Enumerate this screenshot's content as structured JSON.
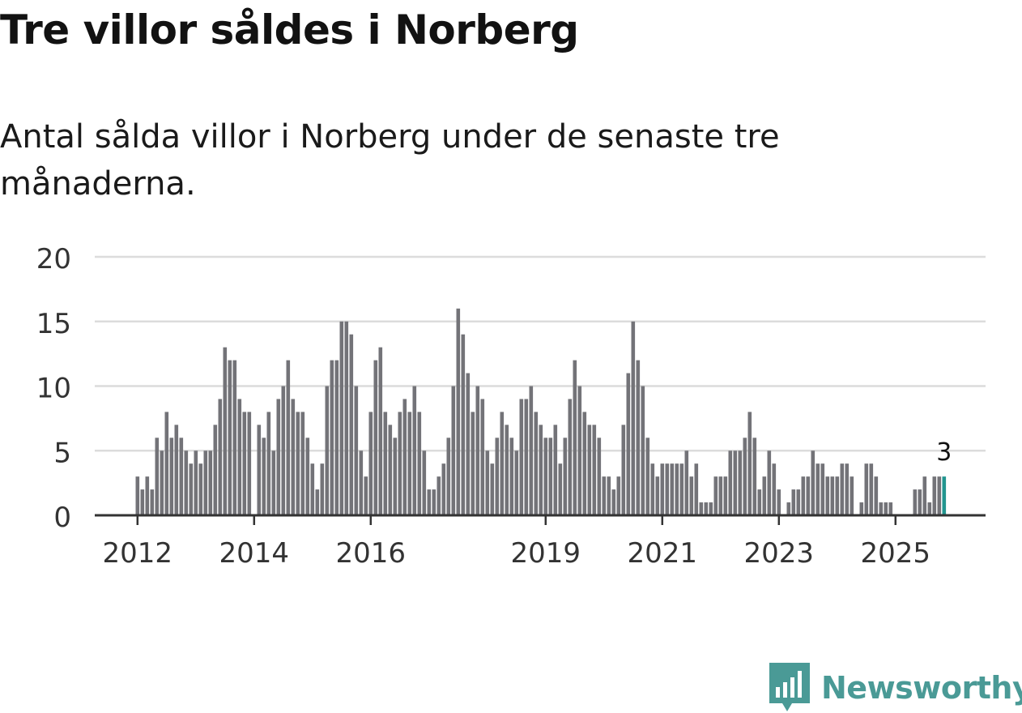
{
  "title": "Tre villor såldes i Norberg",
  "subtitle": "Antal sålda villor i Norberg under de senaste tre månaderna.",
  "logo": {
    "text": "Newsworthy"
  },
  "colors": {
    "bar": "#737378",
    "highlight": "#22958f",
    "grid": "#dcdcdc",
    "axis": "#333333",
    "logo": "#4a9a96"
  },
  "chart_data": {
    "type": "bar",
    "title": "Tre villor såldes i Norberg",
    "subtitle": "Antal sålda villor i Norberg under de senaste tre månaderna.",
    "xlabel": "",
    "ylabel": "",
    "ylim": [
      0,
      20
    ],
    "yticks": [
      0,
      5,
      10,
      15,
      20
    ],
    "grid": true,
    "start_year": 2012,
    "start_month": 1,
    "frequency": "monthly",
    "xtick_labels": [
      "2012",
      "2014",
      "2016",
      "2019",
      "2021",
      "2023",
      "2025"
    ],
    "values": [
      3,
      2,
      3,
      2,
      6,
      5,
      8,
      6,
      7,
      6,
      5,
      4,
      5,
      4,
      5,
      5,
      7,
      9,
      13,
      12,
      12,
      9,
      8,
      8,
      0,
      7,
      6,
      8,
      5,
      9,
      10,
      12,
      9,
      8,
      8,
      6,
      4,
      2,
      4,
      10,
      12,
      12,
      15,
      15,
      14,
      10,
      5,
      3,
      8,
      12,
      13,
      8,
      7,
      6,
      8,
      9,
      8,
      10,
      8,
      5,
      2,
      2,
      3,
      4,
      6,
      10,
      16,
      14,
      11,
      8,
      10,
      9,
      5,
      4,
      6,
      8,
      7,
      6,
      5,
      9,
      9,
      10,
      8,
      7,
      6,
      6,
      7,
      4,
      6,
      9,
      12,
      10,
      8,
      7,
      7,
      6,
      3,
      3,
      2,
      3,
      7,
      11,
      15,
      12,
      10,
      6,
      4,
      3,
      4,
      4,
      4,
      4,
      4,
      5,
      3,
      4,
      1,
      1,
      1,
      3,
      3,
      3,
      5,
      5,
      5,
      6,
      8,
      6,
      2,
      3,
      5,
      4,
      2,
      0,
      1,
      2,
      2,
      3,
      3,
      5,
      4,
      4,
      3,
      3,
      3,
      4,
      4,
      3,
      0,
      1,
      4,
      4,
      3,
      1,
      1,
      1,
      0,
      0,
      0,
      0,
      2,
      2,
      3,
      1,
      3,
      3,
      3
    ],
    "highlight_index": 166,
    "annotation": {
      "label": "3"
    }
  }
}
